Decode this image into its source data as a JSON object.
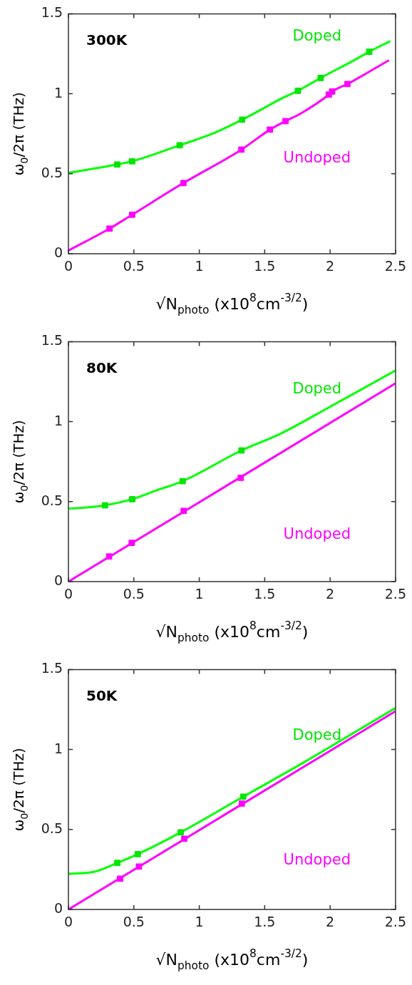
{
  "chart_data": [
    {
      "type": "scatter",
      "title": "300K",
      "xlabel": "√N$_{photo}$ (x10$^{8}$cm$^{-3/2}$)",
      "ylabel": "ω$_{0}$/2π (THz)",
      "xlim": [
        0,
        2.5
      ],
      "xticks": [
        0,
        0.5,
        1,
        1.5,
        2,
        2.5
      ],
      "ylim": [
        0,
        1.5
      ],
      "yticks": [
        0,
        0.5,
        1,
        1.5
      ],
      "grid": false,
      "legend": false,
      "marker": "square",
      "series": [
        {
          "type": "line",
          "color": "#00ff00",
          "marker": "none",
          "line_style": "solid",
          "x": [
            0,
            0.373,
            0.487,
            0.85,
            1.1,
            1.328,
            1.638,
            1.754,
            1.928,
            2.195,
            2.299,
            2.46
          ],
          "values": [
            0.506,
            0.558,
            0.578,
            0.678,
            0.75,
            0.838,
            0.974,
            1.019,
            1.099,
            1.215,
            1.263,
            1.33
          ]
        },
        {
          "type": "line",
          "color": "#ff00ff",
          "marker": "none",
          "line_style": "solid",
          "x": [
            0,
            0.314,
            0.487,
            0.879,
            1.322,
            1.54,
            1.659,
            1.778,
            1.99,
            2.015,
            2.132,
            2.45
          ],
          "values": [
            0.02,
            0.157,
            0.244,
            0.442,
            0.651,
            0.776,
            0.829,
            0.878,
            0.995,
            1.014,
            1.061,
            1.21
          ]
        },
        {
          "type": "scatter",
          "name": "Doped",
          "color": "#00e600",
          "x": [
            0.373,
            0.487,
            0.85,
            1.328,
            1.754,
            1.928,
            2.299
          ],
          "values": [
            0.558,
            0.578,
            0.678,
            0.838,
            1.019,
            1.099,
            1.263
          ]
        },
        {
          "type": "scatter",
          "name": "Undoped",
          "color": "#ff00ff",
          "x": [
            0.314,
            0.487,
            0.879,
            1.322,
            1.54,
            1.659,
            1.99,
            2.015,
            2.132
          ],
          "values": [
            0.157,
            0.244,
            0.442,
            0.651,
            0.776,
            0.829,
            0.995,
            1.014,
            1.061
          ]
        }
      ]
    },
    {
      "type": "scatter",
      "title": "80K",
      "xlabel": "√N$_{photo}$ (x10$^{8}$cm$^{-3/2}$)",
      "ylabel": "ω$_{0}$/2π (THz)",
      "xlim": [
        0,
        2.5
      ],
      "xticks": [
        0,
        0.5,
        1,
        1.5,
        2,
        2.5
      ],
      "ylim": [
        0,
        1.5
      ],
      "yticks": [
        0,
        0.5,
        1,
        1.5
      ],
      "grid": false,
      "legend": false,
      "marker": "square",
      "series": [
        {
          "type": "line",
          "color": "#00ff00",
          "marker": "none",
          "line_style": "solid",
          "x": [
            0,
            0.118,
            0.279,
            0.488,
            0.668,
            0.873,
            1.323,
            1.617,
            1.997,
            2.5
          ],
          "values": [
            0.457,
            0.462,
            0.477,
            0.515,
            0.569,
            0.628,
            0.82,
            0.923,
            1.092,
            1.32
          ]
        },
        {
          "type": "line",
          "color": "#ff00ff",
          "marker": "none",
          "line_style": "solid",
          "x": [
            0,
            2.5
          ],
          "values": [
            0,
            1.24
          ]
        },
        {
          "type": "scatter",
          "name": "Doped",
          "color": "#00e600",
          "x": [
            0.279,
            0.488,
            0.873,
            1.323
          ],
          "values": [
            0.477,
            0.515,
            0.628,
            0.82
          ]
        },
        {
          "type": "scatter",
          "name": "Undoped",
          "color": "#ff00ff",
          "x": [
            0.311,
            0.484,
            0.881,
            1.317
          ],
          "values": [
            0.157,
            0.242,
            0.442,
            0.649
          ]
        }
      ]
    },
    {
      "type": "scatter",
      "title": "50K",
      "xlabel": "√N$_{photo}$ (x10$^{8}$cm$^{-3/2}$)",
      "ylabel": "ω$_{0}$/2π (THz)",
      "xlim": [
        0,
        2.5
      ],
      "xticks": [
        0,
        0.5,
        1,
        1.5,
        2,
        2.5
      ],
      "ylim": [
        0,
        1.5
      ],
      "yticks": [
        0,
        0.5,
        1,
        1.5
      ],
      "grid": false,
      "legend": false,
      "marker": "square",
      "series": [
        {
          "type": "line",
          "color": "#00ff00",
          "marker": "none",
          "line_style": "solid",
          "x": [
            0,
            0.194,
            0.374,
            0.53,
            0.858,
            1.336,
            1.807,
            2.5
          ],
          "values": [
            0.223,
            0.235,
            0.291,
            0.346,
            0.482,
            0.705,
            0.923,
            1.26
          ]
        },
        {
          "type": "line",
          "color": "#ff00ff",
          "marker": "none",
          "line_style": "solid",
          "x": [
            0,
            2.5
          ],
          "values": [
            0,
            1.24
          ]
        },
        {
          "type": "scatter",
          "name": "Doped",
          "color": "#00e600",
          "x": [
            0.374,
            0.53,
            0.858,
            1.336
          ],
          "values": [
            0.291,
            0.346,
            0.482,
            0.705
          ]
        },
        {
          "type": "scatter",
          "name": "Undoped",
          "color": "#ff00ff",
          "x": [
            0.395,
            0.539,
            0.886,
            1.325
          ],
          "values": [
            0.192,
            0.268,
            0.442,
            0.662
          ]
        }
      ]
    }
  ]
}
